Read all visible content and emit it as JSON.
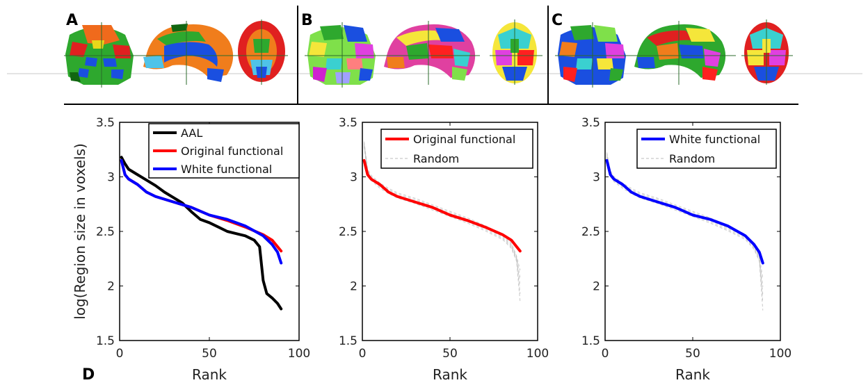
{
  "panels": {
    "a_label": "A",
    "b_label": "B",
    "c_label": "C",
    "d_label": "D"
  },
  "colors": {
    "aal": "#000000",
    "original": "#ff0000",
    "white": "#0000ff",
    "random": "#bbbbbb"
  },
  "chart_data": [
    {
      "type": "line",
      "ylabel": "log(Region size in voxels)",
      "xlabel": "Rank",
      "xlim": [
        0,
        100
      ],
      "ylim": [
        1.5,
        3.5
      ],
      "xticks": [
        "0",
        "50",
        "100"
      ],
      "yticks": [
        "1.5",
        "2",
        "2.5",
        "3",
        "3.5"
      ],
      "legend_position": "top-right",
      "series": [
        {
          "name": "AAL",
          "color": "#000000",
          "x": [
            1,
            3,
            5,
            10,
            15,
            20,
            25,
            30,
            35,
            40,
            45,
            50,
            55,
            60,
            65,
            70,
            75,
            78,
            80,
            82,
            85,
            88,
            90
          ],
          "y": [
            3.18,
            3.12,
            3.07,
            3.02,
            2.97,
            2.92,
            2.86,
            2.81,
            2.76,
            2.68,
            2.61,
            2.58,
            2.54,
            2.5,
            2.48,
            2.46,
            2.42,
            2.36,
            2.05,
            1.93,
            1.89,
            1.84,
            1.79
          ]
        },
        {
          "name": "Original functional",
          "color": "#ff0000",
          "x": [
            1,
            3,
            5,
            10,
            15,
            20,
            30,
            40,
            50,
            60,
            70,
            80,
            85,
            90
          ],
          "y": [
            3.15,
            3.02,
            2.98,
            2.93,
            2.86,
            2.82,
            2.77,
            2.72,
            2.65,
            2.6,
            2.54,
            2.47,
            2.42,
            2.32
          ]
        },
        {
          "name": "White functional",
          "color": "#0000ff",
          "x": [
            1,
            3,
            5,
            10,
            15,
            20,
            30,
            40,
            50,
            60,
            70,
            80,
            85,
            88,
            90
          ],
          "y": [
            3.15,
            3.02,
            2.98,
            2.93,
            2.86,
            2.82,
            2.77,
            2.72,
            2.65,
            2.61,
            2.55,
            2.46,
            2.38,
            2.31,
            2.21
          ]
        }
      ]
    },
    {
      "type": "line",
      "xlabel": "Rank",
      "xlim": [
        0,
        100
      ],
      "ylim": [
        1.5,
        3.5
      ],
      "xticks": [
        "0",
        "50",
        "100"
      ],
      "yticks": [
        "1.5",
        "2",
        "2.5",
        "3",
        "3.5"
      ],
      "legend_position": "top-right",
      "series": [
        {
          "name": "Original functional",
          "color": "#ff0000",
          "x": [
            1,
            3,
            5,
            10,
            15,
            20,
            30,
            40,
            50,
            60,
            70,
            80,
            85,
            90
          ],
          "y": [
            3.15,
            3.02,
            2.98,
            2.93,
            2.86,
            2.82,
            2.77,
            2.72,
            2.65,
            2.6,
            2.54,
            2.47,
            2.42,
            2.32
          ]
        },
        {
          "name": "Random",
          "color": "#bbbbbb",
          "dashed": true,
          "x": [
            1,
            3,
            5,
            10,
            15,
            20,
            30,
            40,
            50,
            60,
            70,
            80,
            85,
            88,
            90
          ],
          "y": [
            3.3,
            3.05,
            2.99,
            2.92,
            2.87,
            2.83,
            2.78,
            2.72,
            2.66,
            2.6,
            2.53,
            2.45,
            2.37,
            2.25,
            2.0
          ]
        }
      ]
    },
    {
      "type": "line",
      "xlabel": "Rank",
      "xlim": [
        0,
        100
      ],
      "ylim": [
        1.5,
        3.5
      ],
      "xticks": [
        "0",
        "50",
        "100"
      ],
      "yticks": [
        "1.5",
        "2",
        "2.5",
        "3",
        "3.5"
      ],
      "legend_position": "top-right",
      "series": [
        {
          "name": "White functional",
          "color": "#0000ff",
          "x": [
            1,
            3,
            5,
            10,
            15,
            20,
            30,
            40,
            50,
            60,
            70,
            80,
            85,
            88,
            90
          ],
          "y": [
            3.15,
            3.02,
            2.98,
            2.93,
            2.86,
            2.82,
            2.77,
            2.72,
            2.65,
            2.61,
            2.55,
            2.46,
            2.38,
            2.31,
            2.21
          ]
        },
        {
          "name": "Random",
          "color": "#bbbbbb",
          "dashed": true,
          "x": [
            1,
            3,
            5,
            10,
            15,
            20,
            30,
            40,
            50,
            60,
            70,
            80,
            85,
            88,
            90
          ],
          "y": [
            3.2,
            3.03,
            2.98,
            2.92,
            2.87,
            2.83,
            2.78,
            2.72,
            2.66,
            2.6,
            2.53,
            2.45,
            2.36,
            2.25,
            1.92
          ]
        }
      ]
    }
  ]
}
